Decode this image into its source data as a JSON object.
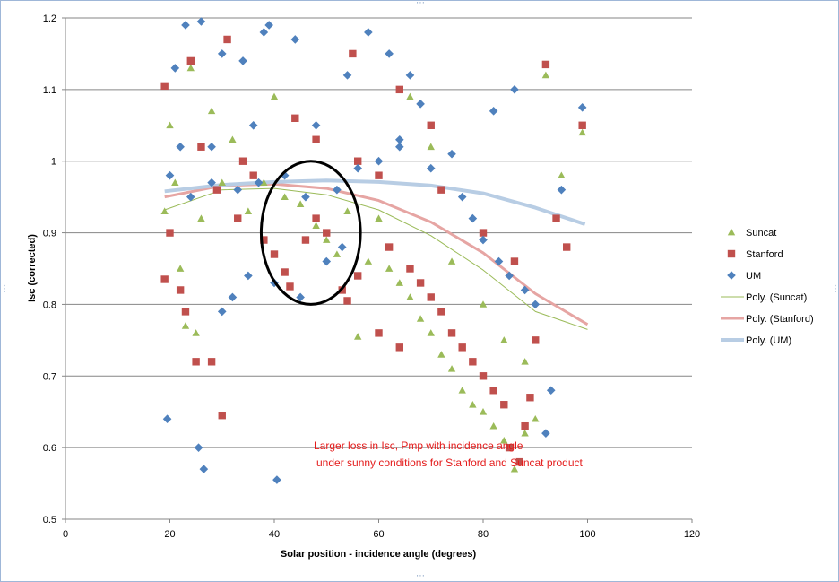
{
  "chart_data": {
    "type": "scatter",
    "title": "",
    "xlabel": "Solar position - incidence angle (degrees)",
    "ylabel": "Isc (corrected)",
    "xlim": [
      0,
      120
    ],
    "ylim": [
      0.5,
      1.2
    ],
    "xticks": [
      "0",
      "20",
      "40",
      "60",
      "80",
      "100",
      "120"
    ],
    "yticks": [
      "0.5",
      "0.6",
      "0.7",
      "0.8",
      "0.9",
      "1",
      "1.1",
      "1.2"
    ],
    "grid": "horizontal",
    "legend_position": "right",
    "series": [
      {
        "name": "Suncat",
        "marker": "triangle",
        "color": "#9bbb59",
        "points": [
          [
            19,
            0.93
          ],
          [
            20,
            1.05
          ],
          [
            22,
            0.85
          ],
          [
            23,
            0.77
          ],
          [
            25,
            0.76
          ],
          [
            21,
            0.97
          ],
          [
            24,
            1.13
          ],
          [
            28,
            1.07
          ],
          [
            32,
            1.03
          ],
          [
            35,
            0.93
          ],
          [
            38,
            0.97
          ],
          [
            40,
            1.09
          ],
          [
            45,
            0.94
          ],
          [
            48,
            0.91
          ],
          [
            50,
            0.89
          ],
          [
            52,
            0.87
          ],
          [
            56,
            0.755
          ],
          [
            58,
            0.86
          ],
          [
            62,
            0.85
          ],
          [
            64,
            0.83
          ],
          [
            66,
            0.81
          ],
          [
            68,
            0.78
          ],
          [
            70,
            0.76
          ],
          [
            72,
            0.73
          ],
          [
            74,
            0.71
          ],
          [
            76,
            0.68
          ],
          [
            78,
            0.66
          ],
          [
            80,
            0.65
          ],
          [
            82,
            0.63
          ],
          [
            84,
            0.61
          ],
          [
            86,
            0.57
          ],
          [
            88,
            0.62
          ],
          [
            90,
            0.64
          ],
          [
            92,
            1.12
          ],
          [
            95,
            0.98
          ],
          [
            99,
            1.04
          ],
          [
            66,
            1.09
          ],
          [
            70,
            1.02
          ],
          [
            60,
            0.92
          ],
          [
            30,
            0.97
          ],
          [
            26,
            0.92
          ],
          [
            42,
            0.95
          ],
          [
            54,
            0.93
          ],
          [
            74,
            0.86
          ],
          [
            80,
            0.8
          ],
          [
            84,
            0.75
          ],
          [
            88,
            0.72
          ]
        ]
      },
      {
        "name": "Stanford",
        "marker": "square",
        "color": "#c0504d",
        "points": [
          [
            19,
            1.105
          ],
          [
            19,
            0.835
          ],
          [
            20,
            0.9
          ],
          [
            22,
            0.82
          ],
          [
            23,
            0.79
          ],
          [
            25,
            0.72
          ],
          [
            28,
            0.72
          ],
          [
            30,
            0.645
          ],
          [
            31,
            1.17
          ],
          [
            24,
            1.14
          ],
          [
            26,
            1.02
          ],
          [
            29,
            0.96
          ],
          [
            33,
            0.92
          ],
          [
            36,
            0.98
          ],
          [
            38,
            0.89
          ],
          [
            40,
            0.87
          ],
          [
            42,
            0.845
          ],
          [
            43,
            0.825
          ],
          [
            46,
            0.89
          ],
          [
            48,
            0.92
          ],
          [
            50,
            0.9
          ],
          [
            53,
            0.82
          ],
          [
            54,
            0.805
          ],
          [
            55,
            1.15
          ],
          [
            56,
            0.84
          ],
          [
            60,
            0.76
          ],
          [
            64,
            0.74
          ],
          [
            62,
            0.88
          ],
          [
            66,
            0.85
          ],
          [
            68,
            0.83
          ],
          [
            70,
            0.81
          ],
          [
            72,
            0.79
          ],
          [
            74,
            0.76
          ],
          [
            76,
            0.74
          ],
          [
            78,
            0.72
          ],
          [
            80,
            0.7
          ],
          [
            82,
            0.68
          ],
          [
            84,
            0.66
          ],
          [
            85,
            0.6
          ],
          [
            87,
            0.58
          ],
          [
            88,
            0.63
          ],
          [
            89,
            0.67
          ],
          [
            90,
            0.75
          ],
          [
            92,
            1.135
          ],
          [
            94,
            0.92
          ],
          [
            96,
            0.88
          ],
          [
            99,
            1.05
          ],
          [
            64,
            1.1
          ],
          [
            70,
            1.05
          ],
          [
            56,
            1.0
          ],
          [
            34,
            1.0
          ],
          [
            44,
            1.06
          ],
          [
            48,
            1.03
          ],
          [
            60,
            0.98
          ],
          [
            72,
            0.96
          ],
          [
            80,
            0.9
          ],
          [
            86,
            0.86
          ]
        ]
      },
      {
        "name": "UM",
        "marker": "diamond",
        "color": "#4f81bd",
        "points": [
          [
            19.5,
            0.64
          ],
          [
            25.5,
            0.6
          ],
          [
            26.5,
            0.57
          ],
          [
            40.5,
            0.555
          ],
          [
            21,
            1.13
          ],
          [
            23,
            1.19
          ],
          [
            26,
            1.195
          ],
          [
            30,
            1.15
          ],
          [
            34,
            1.14
          ],
          [
            38,
            1.18
          ],
          [
            39,
            1.19
          ],
          [
            44,
            1.17
          ],
          [
            54,
            1.12
          ],
          [
            58,
            1.18
          ],
          [
            62,
            1.15
          ],
          [
            30,
            0.79
          ],
          [
            32,
            0.81
          ],
          [
            35,
            0.84
          ],
          [
            40,
            0.83
          ],
          [
            45,
            0.81
          ],
          [
            50,
            0.86
          ],
          [
            53,
            0.88
          ],
          [
            20,
            0.98
          ],
          [
            24,
            0.95
          ],
          [
            28,
            0.97
          ],
          [
            33,
            0.96
          ],
          [
            37,
            0.97
          ],
          [
            42,
            0.98
          ],
          [
            46,
            0.95
          ],
          [
            52,
            0.96
          ],
          [
            56,
            0.99
          ],
          [
            60,
            1.0
          ],
          [
            64,
            1.03
          ],
          [
            68,
            1.08
          ],
          [
            70,
            0.99
          ],
          [
            74,
            1.01
          ],
          [
            76,
            0.95
          ],
          [
            78,
            0.92
          ],
          [
            80,
            0.89
          ],
          [
            83,
            0.86
          ],
          [
            85,
            0.84
          ],
          [
            88,
            0.82
          ],
          [
            90,
            0.8
          ],
          [
            92,
            0.62
          ],
          [
            93,
            0.68
          ],
          [
            95,
            0.96
          ],
          [
            99,
            1.075
          ],
          [
            66,
            1.12
          ],
          [
            64,
            1.02
          ],
          [
            86,
            1.1
          ],
          [
            82,
            1.07
          ],
          [
            48,
            1.05
          ],
          [
            36,
            1.05
          ],
          [
            28,
            1.02
          ],
          [
            22,
            1.02
          ]
        ]
      }
    ],
    "trendlines": [
      {
        "name": "Poly. (Suncat)",
        "color": "#9bbb59",
        "x": [
          19,
          30,
          40,
          50,
          60,
          70,
          80,
          90,
          100
        ],
        "y": [
          0.932,
          0.96,
          0.962,
          0.953,
          0.932,
          0.896,
          0.848,
          0.79,
          0.765
        ]
      },
      {
        "name": "Poly. (Stanford)",
        "color": "#e6a5a3",
        "x": [
          19,
          30,
          40,
          50,
          60,
          70,
          80,
          90,
          100
        ],
        "y": [
          0.95,
          0.966,
          0.968,
          0.962,
          0.945,
          0.915,
          0.872,
          0.815,
          0.772
        ]
      },
      {
        "name": "Poly. (UM)",
        "color": "#b8cde4",
        "x": [
          19,
          30,
          40,
          50,
          60,
          70,
          80,
          90,
          99.5
        ],
        "y": [
          0.958,
          0.967,
          0.971,
          0.973,
          0.971,
          0.966,
          0.955,
          0.935,
          0.912
        ]
      }
    ],
    "annotation_text": [
      "Larger loss in Isc, Pmp with incidence angle",
      "under sunny conditions for Stanford and Suncat product"
    ],
    "highlight_ellipse": {
      "center_x": 47,
      "center_y": 0.9,
      "radius_x": 9.5,
      "radius_y": 0.1
    }
  }
}
